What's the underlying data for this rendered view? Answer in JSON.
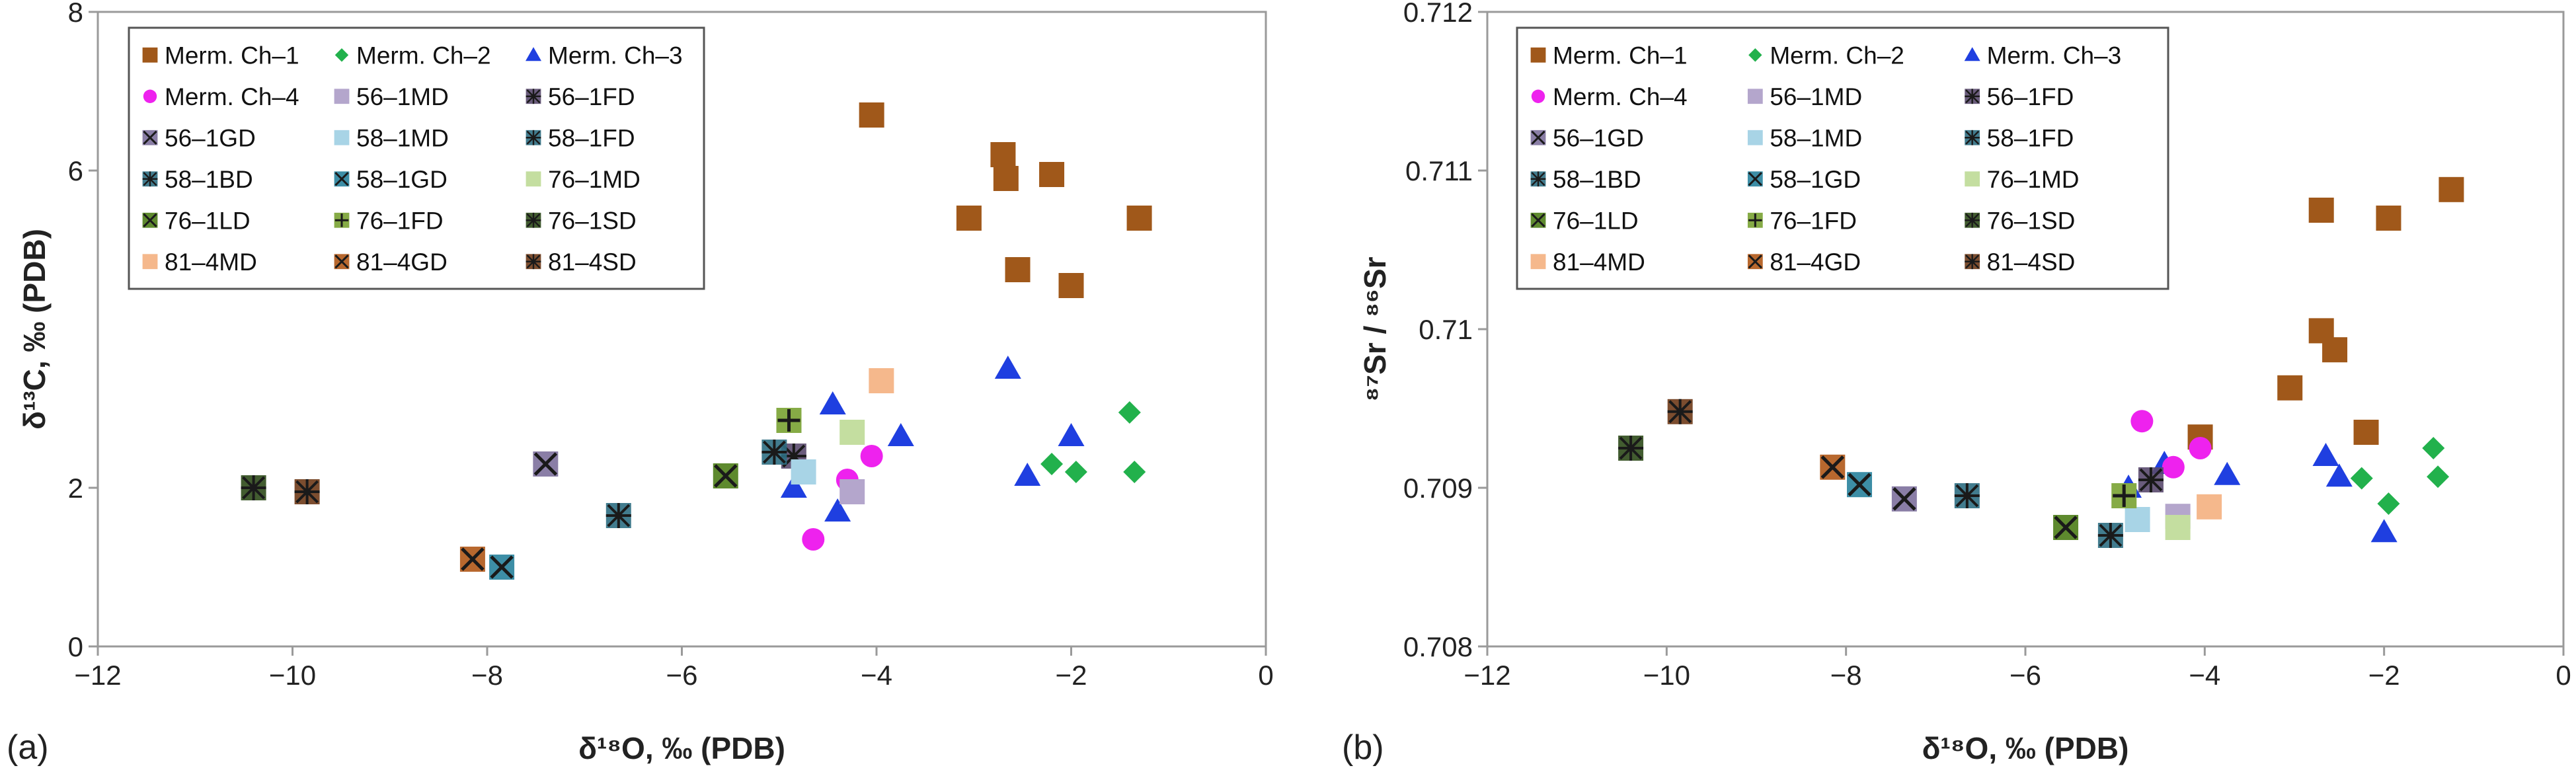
{
  "colors": {
    "merm1": "#a0581a",
    "merm2": "#22b14c",
    "merm3": "#1f3fe0",
    "merm4": "#ee22ee",
    "md": "#b4a6cc",
    "fd": "#5a4a6e",
    "gd": "#8a7ea6",
    "md58": "#a8d4e6",
    "bd58": "#2d6e82",
    "gd58": "#3d8ea6",
    "md76": "#c4dea0",
    "ld76": "#5e8a2e",
    "fd76": "#86ab46",
    "sd76": "#2d4a1a",
    "md81": "#f5b88c",
    "gd81": "#b8682e",
    "sd81": "#6e3a18"
  },
  "legend": [
    {
      "label": "Merm. Ch–1",
      "marker": "square",
      "color": "merm1"
    },
    {
      "label": "Merm. Ch–2",
      "marker": "diamond",
      "color": "merm2"
    },
    {
      "label": "Merm. Ch–3",
      "marker": "triangle",
      "color": "merm3"
    },
    {
      "label": "Merm. Ch–4",
      "marker": "circle",
      "color": "merm4"
    },
    {
      "label": "56–1MD",
      "marker": "square",
      "color": "md"
    },
    {
      "label": "56–1FD",
      "marker": "star",
      "color": "fd"
    },
    {
      "label": "56–1GD",
      "marker": "xsquare",
      "color": "gd"
    },
    {
      "label": "58–1MD",
      "marker": "square",
      "color": "md58"
    },
    {
      "label": "58–1FD",
      "marker": "star",
      "color": "bd58"
    },
    {
      "label": "58–1BD",
      "marker": "star",
      "color": "bd58"
    },
    {
      "label": "58–1GD",
      "marker": "xsquare",
      "color": "gd58"
    },
    {
      "label": "76–1MD",
      "marker": "square",
      "color": "md76"
    },
    {
      "label": "76–1LD",
      "marker": "xsquare",
      "color": "ld76"
    },
    {
      "label": "76–1FD",
      "marker": "plus",
      "color": "fd76"
    },
    {
      "label": "76–1SD",
      "marker": "star",
      "color": "sd76"
    },
    {
      "label": "81–4MD",
      "marker": "square",
      "color": "md81"
    },
    {
      "label": "81–4GD",
      "marker": "xsquare",
      "color": "gd81"
    },
    {
      "label": "81–4SD",
      "marker": "star",
      "color": "sd81"
    }
  ],
  "chart_data": [
    {
      "type": "scatter",
      "panel_label": "(a)",
      "xlabel": "δ¹⁸O, ‰ (PDB)",
      "ylabel": "δ¹³C, ‰ (PDB)",
      "xlim": [
        -12,
        0
      ],
      "ylim": [
        0,
        8
      ],
      "xticks": [
        -12,
        -10,
        -8,
        -6,
        -4,
        -2,
        0
      ],
      "yticks": [
        0,
        2,
        6,
        8
      ],
      "ytick_labels": [
        "0",
        "2",
        "6",
        "8"
      ],
      "series": [
        {
          "name": "Merm. Ch–1",
          "x": [
            -4.05,
            -2.7,
            -2.67,
            -2.2,
            -3.05,
            -1.3,
            -2.55,
            -2.0
          ],
          "y": [
            6.7,
            6.2,
            5.9,
            5.95,
            5.4,
            5.4,
            4.75,
            4.55
          ]
        },
        {
          "name": "Merm. Ch–2",
          "x": [
            -1.4,
            -2.2,
            -1.95,
            -1.35
          ],
          "y": [
            2.95,
            2.3,
            2.2,
            2.2
          ]
        },
        {
          "name": "Merm. Ch–3",
          "x": [
            -2.65,
            -4.45,
            -3.75,
            -2.0,
            -2.45,
            -4.85,
            -4.4
          ],
          "y": [
            3.5,
            3.05,
            2.65,
            2.65,
            2.15,
            2.0,
            1.7
          ]
        },
        {
          "name": "Merm. Ch–4",
          "x": [
            -4.05,
            -4.3,
            -4.65
          ],
          "y": [
            2.4,
            2.1,
            1.35
          ]
        },
        {
          "name": "56–1MD",
          "x": [
            -4.25
          ],
          "y": [
            1.95
          ]
        },
        {
          "name": "56–1FD",
          "x": [
            -4.85
          ],
          "y": [
            2.4
          ]
        },
        {
          "name": "56–1GD",
          "x": [
            -7.4
          ],
          "y": [
            2.3
          ]
        },
        {
          "name": "58–1MD",
          "x": [
            -4.75
          ],
          "y": [
            2.2
          ]
        },
        {
          "name": "58–1FD",
          "x": [
            -5.05
          ],
          "y": [
            2.45
          ]
        },
        {
          "name": "58–1BD",
          "x": [
            -6.65
          ],
          "y": [
            1.65
          ]
        },
        {
          "name": "58–1GD",
          "x": [
            -7.85
          ],
          "y": [
            1.0
          ]
        },
        {
          "name": "76–1MD",
          "x": [
            -4.25
          ],
          "y": [
            2.7
          ]
        },
        {
          "name": "76–1LD",
          "x": [
            -5.55
          ],
          "y": [
            2.15
          ]
        },
        {
          "name": "76–1FD",
          "x": [
            -4.9
          ],
          "y": [
            2.85
          ]
        },
        {
          "name": "76–1SD",
          "x": [
            -10.4
          ],
          "y": [
            2.0
          ]
        },
        {
          "name": "81–4MD",
          "x": [
            -3.95
          ],
          "y": [
            3.35
          ]
        },
        {
          "name": "81–4GD",
          "x": [
            -8.15
          ],
          "y": [
            1.1
          ]
        },
        {
          "name": "81–4SD",
          "x": [
            -9.85
          ],
          "y": [
            1.95
          ]
        }
      ]
    },
    {
      "type": "scatter",
      "panel_label": "(b)",
      "xlabel": "δ¹⁸O, ‰ (PDB)",
      "ylabel": "⁸⁷Sr / ⁸⁶Sr",
      "xlim": [
        -12,
        0
      ],
      "ylim": [
        0.708,
        0.712
      ],
      "xticks": [
        -12,
        -10,
        -8,
        -6,
        -4,
        -2,
        0
      ],
      "yticks": [
        0.708,
        0.709,
        0.71,
        0.711,
        0.712
      ],
      "ytick_labels": [
        "0.708",
        "0.709",
        "0.71",
        "0.711",
        "0.712"
      ],
      "series": [
        {
          "name": "Merm. Ch–1",
          "x": [
            -2.7,
            -1.95,
            -1.25,
            -2.7,
            -2.55,
            -3.05,
            -2.2,
            -4.05
          ],
          "y": [
            0.71075,
            0.7107,
            0.71088,
            0.70999,
            0.70987,
            0.70963,
            0.70935,
            0.70932
          ]
        },
        {
          "name": "Merm. Ch–2",
          "x": [
            -1.45,
            -2.25,
            -1.4,
            -1.95
          ],
          "y": [
            0.70925,
            0.70906,
            0.70907,
            0.7089
          ]
        },
        {
          "name": "Merm. Ch–3",
          "x": [
            -2.65,
            -4.45,
            -3.75,
            -2.5,
            -4.85,
            -2.0
          ],
          "y": [
            0.7092,
            0.70915,
            0.70908,
            0.70907,
            0.709,
            0.70872
          ]
        },
        {
          "name": "Merm. Ch–4",
          "x": [
            -4.7,
            -4.05,
            -4.35
          ],
          "y": [
            0.70942,
            0.70925,
            0.70913
          ]
        },
        {
          "name": "56–1MD",
          "x": [
            -4.3
          ],
          "y": [
            0.70882
          ]
        },
        {
          "name": "56–1FD",
          "x": [
            -4.6
          ],
          "y": [
            0.70905
          ]
        },
        {
          "name": "56–1GD",
          "x": [
            -7.35
          ],
          "y": [
            0.70893
          ]
        },
        {
          "name": "58–1MD",
          "x": [
            -4.75
          ],
          "y": [
            0.7088
          ]
        },
        {
          "name": "58–1FD",
          "x": [
            -5.05
          ],
          "y": [
            0.7087
          ]
        },
        {
          "name": "58–1BD",
          "x": [
            -6.65
          ],
          "y": [
            0.70895
          ]
        },
        {
          "name": "58–1GD",
          "x": [
            -7.85
          ],
          "y": [
            0.70902
          ]
        },
        {
          "name": "76–1MD",
          "x": [
            -4.3
          ],
          "y": [
            0.70875
          ]
        },
        {
          "name": "76–1LD",
          "x": [
            -5.55
          ],
          "y": [
            0.70875
          ]
        },
        {
          "name": "76–1FD",
          "x": [
            -4.9
          ],
          "y": [
            0.70895
          ]
        },
        {
          "name": "76–1SD",
          "x": [
            -10.4
          ],
          "y": [
            0.70925
          ]
        },
        {
          "name": "81–4MD",
          "x": [
            -3.95
          ],
          "y": [
            0.70888
          ]
        },
        {
          "name": "81–4GD",
          "x": [
            -8.15
          ],
          "y": [
            0.70913
          ]
        },
        {
          "name": "81–4SD",
          "x": [
            -9.85
          ],
          "y": [
            0.70948
          ]
        }
      ]
    }
  ]
}
